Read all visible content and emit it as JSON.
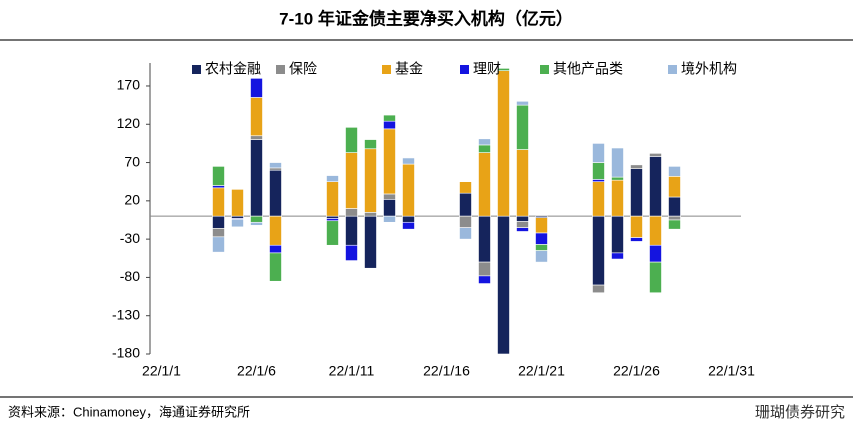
{
  "chart_data": {
    "type": "stacked_bar",
    "title": "7-10 年证金债主要净买入机构（亿元）",
    "source": "资料来源：Chinamoney，海通证券研究所",
    "watermark": "珊瑚债券研究",
    "categories": [
      "22/1/1",
      null,
      null,
      null,
      null,
      "22/1/6",
      null,
      null,
      null,
      null,
      "22/1/11",
      null,
      null,
      null,
      null,
      "22/1/16",
      null,
      null,
      null,
      null,
      "22/1/21",
      null,
      null,
      null,
      null,
      "22/1/26",
      null,
      null,
      null,
      null,
      "22/1/31"
    ],
    "series": [
      {
        "name": "农村金融",
        "color": "#15245c",
        "values": [
          null,
          null,
          null,
          -16,
          -3,
          100,
          60,
          null,
          null,
          -3,
          -38,
          -68,
          22,
          -8,
          null,
          null,
          30,
          -60,
          -180,
          -7,
          -2,
          null,
          null,
          -90,
          -48,
          62,
          78,
          25,
          null,
          null,
          null
        ]
      },
      {
        "name": "保险",
        "color": "#8c8c8c",
        "values": [
          null,
          null,
          null,
          -11,
          null,
          5,
          3,
          null,
          null,
          null,
          10,
          5,
          7,
          null,
          null,
          null,
          -15,
          -18,
          null,
          -8,
          null,
          null,
          null,
          -10,
          null,
          5,
          4,
          -5,
          null,
          null,
          null
        ]
      },
      {
        "name": "基金",
        "color": "#e8a317",
        "values": [
          null,
          null,
          null,
          37,
          35,
          50,
          -38,
          null,
          null,
          45,
          73,
          83,
          85,
          68,
          null,
          null,
          15,
          83,
          190,
          87,
          -20,
          null,
          null,
          45,
          47,
          -28,
          -38,
          27,
          null,
          null,
          null
        ]
      },
      {
        "name": "理财",
        "color": "#1414e0",
        "values": [
          null,
          null,
          null,
          3,
          -1,
          25,
          -10,
          null,
          null,
          -3,
          -20,
          null,
          10,
          -9,
          null,
          null,
          null,
          -10,
          null,
          -5,
          -15,
          null,
          null,
          3,
          -8,
          -5,
          -22,
          null,
          null,
          null,
          null
        ]
      },
      {
        "name": "其他产品类",
        "color": "#4caf50",
        "values": [
          null,
          null,
          null,
          25,
          null,
          -8,
          -37,
          null,
          null,
          -32,
          33,
          12,
          8,
          null,
          null,
          null,
          null,
          10,
          3,
          58,
          -8,
          null,
          null,
          22,
          4,
          null,
          -40,
          -12,
          null,
          null,
          null
        ]
      },
      {
        "name": "境外机构",
        "color": "#9ab8dc",
        "values": [
          null,
          null,
          null,
          -20,
          -10,
          -4,
          7,
          null,
          null,
          8,
          null,
          null,
          -8,
          8,
          null,
          null,
          -15,
          8,
          null,
          5,
          -15,
          null,
          null,
          25,
          38,
          null,
          null,
          13,
          null,
          null,
          null
        ]
      }
    ],
    "ylim": [
      -180,
      200
    ],
    "yticks": [
      170,
      120,
      70,
      20,
      -30,
      -80,
      -130,
      -180
    ]
  }
}
